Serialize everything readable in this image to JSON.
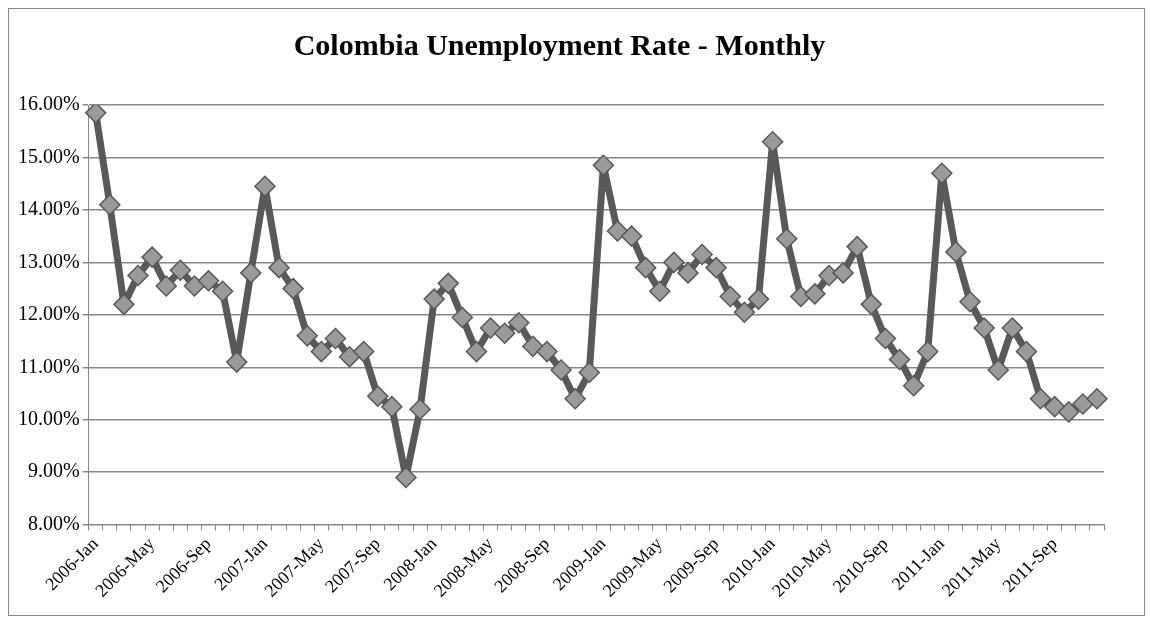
{
  "chart_data": {
    "type": "line",
    "title": "Colombia Unemployment Rate - Monthly",
    "categories": [
      "2006-Jan",
      null,
      null,
      null,
      "2006-May",
      null,
      null,
      null,
      "2006-Sep",
      null,
      null,
      null,
      "2007-Jan",
      null,
      null,
      null,
      "2007-May",
      null,
      null,
      null,
      "2007-Sep",
      null,
      null,
      null,
      "2008-Jan",
      null,
      null,
      null,
      "2008-May",
      null,
      null,
      null,
      "2008-Sep",
      null,
      null,
      null,
      "2009-Jan",
      null,
      null,
      null,
      "2009-May",
      null,
      null,
      null,
      "2009-Sep",
      null,
      null,
      null,
      "2010-Jan",
      null,
      null,
      null,
      "2010-May",
      null,
      null,
      null,
      "2010-Sep",
      null,
      null,
      null,
      "2011-Jan",
      null,
      null,
      null,
      "2011-May",
      null,
      null,
      null,
      "2011-Sep",
      null,
      null,
      null
    ],
    "series": [
      {
        "color": "#595959",
        "values": [
          15.85,
          14.1,
          12.2,
          12.75,
          13.1,
          12.55,
          12.85,
          12.55,
          12.65,
          12.45,
          11.1,
          12.8,
          14.45,
          12.9,
          12.5,
          11.6,
          11.3,
          11.55,
          11.2,
          11.3,
          10.45,
          10.25,
          8.9,
          10.2,
          12.3,
          12.6,
          11.95,
          11.3,
          11.75,
          11.65,
          11.85,
          11.4,
          11.3,
          10.95,
          10.4,
          10.9,
          14.85,
          13.6,
          13.5,
          12.9,
          12.45,
          13.0,
          12.8,
          13.15,
          12.9,
          12.35,
          12.05,
          12.3,
          15.3,
          13.45,
          12.35,
          12.4,
          12.75,
          12.8,
          13.3,
          12.2,
          11.55,
          11.15,
          10.65,
          11.3,
          14.7,
          13.2,
          12.25,
          11.75,
          10.95,
          11.75,
          11.3,
          10.4,
          10.25,
          10.15,
          10.3,
          10.4
        ]
      }
    ],
    "ylim": [
      8,
      16
    ],
    "yticks": [
      {
        "value": 8,
        "label": "8.00%"
      },
      {
        "value": 9,
        "label": "9.00%"
      },
      {
        "value": 10,
        "label": "10.00%"
      },
      {
        "value": 11,
        "label": "11.00%"
      },
      {
        "value": 12,
        "label": "12.00%"
      },
      {
        "value": 13,
        "label": "13.00%"
      },
      {
        "value": 14,
        "label": "14.00%"
      },
      {
        "value": 15,
        "label": "15.00%"
      },
      {
        "value": 16,
        "label": "16.00%"
      }
    ],
    "grid": "y",
    "marker": "diamond",
    "line_style": "solid"
  }
}
